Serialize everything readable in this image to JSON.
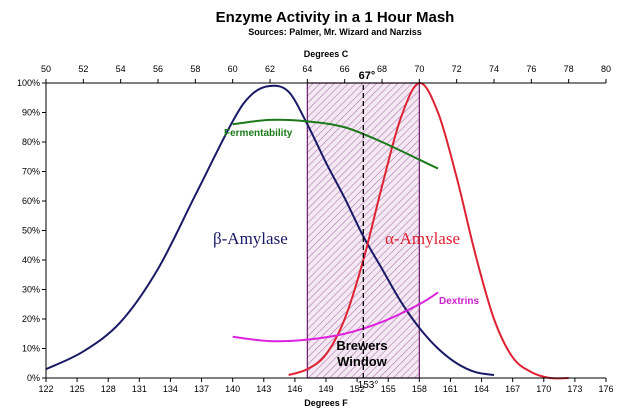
{
  "chart_data": {
    "type": "line",
    "title": "Enzyme Activity in a 1 Hour Mash",
    "subtitle": "Sources: Palmer, Mr. Wizard and Narziss",
    "top_axis": {
      "label": "Degrees C",
      "range": [
        50,
        80
      ],
      "ticks": [
        "50",
        "52",
        "54",
        "56",
        "58",
        "60",
        "62",
        "64",
        "66",
        "68",
        "70",
        "72",
        "74",
        "76",
        "78",
        "80"
      ]
    },
    "x_axis": {
      "label": "Degrees F",
      "range": [
        122,
        176
      ],
      "ticks": [
        "122",
        "125",
        "128",
        "131",
        "134",
        "137",
        "140",
        "143",
        "146",
        "149",
        "152",
        "155",
        "158",
        "161",
        "164",
        "167",
        "170",
        "173",
        "176"
      ]
    },
    "y_axis": {
      "range": [
        0,
        100
      ],
      "ticks": [
        "0%",
        "10%",
        "20%",
        "30%",
        "40%",
        "50%",
        "60%",
        "70%",
        "80%",
        "90%",
        "100%"
      ]
    },
    "grid": false,
    "brewers_window": {
      "label_line1": "Brewers",
      "label_line2": "Window",
      "from_c": 64,
      "to_c": 70
    },
    "marker": {
      "c": 67,
      "label_c": "67°",
      "label_f": "153°"
    },
    "series": [
      {
        "name": "β-Amylase",
        "color": "#1a1a66",
        "x_c": [
          50,
          52,
          54,
          56,
          58,
          60,
          61,
          62,
          63,
          64,
          65,
          66,
          67,
          68,
          69,
          70,
          71,
          72,
          73,
          74
        ],
        "y": [
          3,
          9,
          19,
          37,
          62,
          87,
          96,
          99,
          97,
          86,
          73,
          61,
          48,
          37,
          26,
          17,
          10,
          5,
          2,
          1
        ]
      },
      {
        "name": "α-Amylase",
        "color": "#dd2233",
        "x_c": [
          63,
          64,
          65,
          66,
          67,
          68,
          69,
          70,
          71,
          72,
          73,
          74,
          75,
          76,
          77,
          78
        ],
        "y": [
          1,
          3,
          8,
          20,
          40,
          65,
          88,
          100,
          90,
          68,
          42,
          20,
          7,
          2,
          0,
          0
        ]
      },
      {
        "name": "Fermentability",
        "color": "#1a7a1a",
        "x_c": [
          60,
          62,
          64,
          66,
          68,
          70,
          71
        ],
        "y": [
          86,
          87.5,
          87,
          85,
          80,
          74,
          71
        ]
      },
      {
        "name": "Dextrins",
        "color": "#dd22dd",
        "x_c": [
          60,
          62,
          64,
          66,
          68,
          70,
          71
        ],
        "y": [
          14,
          12.5,
          13,
          15,
          19,
          25,
          29
        ]
      }
    ]
  }
}
